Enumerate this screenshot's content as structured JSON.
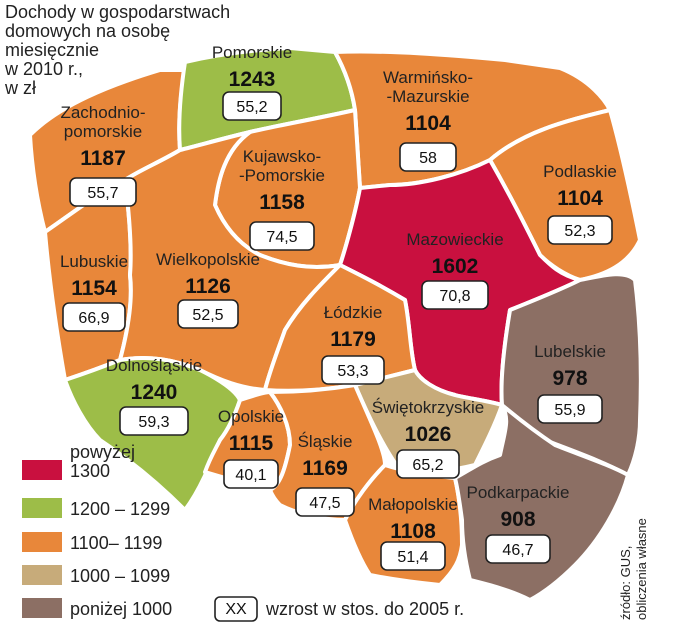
{
  "title_lines": [
    "Dochody w gospodarstwach",
    "domowych na osobę",
    "miesięcznie",
    "w 2010 r.,",
    "w zł"
  ],
  "colors": {
    "above_1300": "#c9103f",
    "r1200_1299": "#9dbd48",
    "r1100_1199": "#e8873a",
    "r1000_1099": "#c7ab7a",
    "below_1000": "#8c6f64",
    "border": "#ffffff"
  },
  "regions": [
    {
      "id": "zachodniopomorskie",
      "name_lines": [
        "Zachodnio-",
        "pomorskie"
      ],
      "value": "1187",
      "growth": "55,7",
      "category": "r1100_1199"
    },
    {
      "id": "pomorskie",
      "name_lines": [
        "Pomorskie"
      ],
      "value": "1243",
      "growth": "55,2",
      "category": "r1200_1299"
    },
    {
      "id": "warminsko-mazurskie",
      "name_lines": [
        "Warmińsko-",
        "-Mazurskie"
      ],
      "value": "1104",
      "growth": "58",
      "category": "r1100_1199"
    },
    {
      "id": "kujawsko-pomorskie",
      "name_lines": [
        "Kujawsko-",
        "-Pomorskie"
      ],
      "value": "1158",
      "growth": "74,5",
      "category": "r1100_1199"
    },
    {
      "id": "podlaskie",
      "name_lines": [
        "Podlaskie"
      ],
      "value": "1104",
      "growth": "52,3",
      "category": "r1100_1199"
    },
    {
      "id": "mazowieckie",
      "name_lines": [
        "Mazowieckie"
      ],
      "value": "1602",
      "growth": "70,8",
      "category": "above_1300"
    },
    {
      "id": "lubuskie",
      "name_lines": [
        "Lubuskie"
      ],
      "value": "1154",
      "growth": "66,9",
      "category": "r1100_1199"
    },
    {
      "id": "wielkopolskie",
      "name_lines": [
        "Wielkopolskie"
      ],
      "value": "1126",
      "growth": "52,5",
      "category": "r1100_1199"
    },
    {
      "id": "lodzkie",
      "name_lines": [
        "Łódzkie"
      ],
      "value": "1179",
      "growth": "53,3",
      "category": "r1100_1199"
    },
    {
      "id": "lubelskie",
      "name_lines": [
        "Lubelskie"
      ],
      "value": "978",
      "growth": "55,9",
      "category": "below_1000"
    },
    {
      "id": "dolnoslaskie",
      "name_lines": [
        "Dolnośląskie"
      ],
      "value": "1240",
      "growth": "59,3",
      "category": "r1200_1299"
    },
    {
      "id": "swietokrzyskie",
      "name_lines": [
        "Świętokrzyskie"
      ],
      "value": "1026",
      "growth": "65,2",
      "category": "r1000_1099"
    },
    {
      "id": "opolskie",
      "name_lines": [
        "Opolskie"
      ],
      "value": "1115",
      "growth": "40,1",
      "category": "r1100_1199"
    },
    {
      "id": "slaskie",
      "name_lines": [
        "Śląskie"
      ],
      "value": "1169",
      "growth": "47,5",
      "category": "r1100_1199"
    },
    {
      "id": "malopolskie",
      "name_lines": [
        "Małopolskie"
      ],
      "value": "1108",
      "growth": "51,4",
      "category": "r1100_1199"
    },
    {
      "id": "podkarpackie",
      "name_lines": [
        "Podkarpackie"
      ],
      "value": "908",
      "growth": "46,7",
      "category": "below_1000"
    }
  ],
  "legend": [
    {
      "category": "above_1300",
      "label_lines": [
        "powyżej",
        "1300"
      ]
    },
    {
      "category": "r1200_1299",
      "label_lines": [
        "1200 – 1299"
      ]
    },
    {
      "category": "r1100_1199",
      "label_lines": [
        "1100– 1199"
      ]
    },
    {
      "category": "r1000_1099",
      "label_lines": [
        "1000 – 1099"
      ]
    },
    {
      "category": "below_1000",
      "label_lines": [
        "poniżej 1000"
      ]
    }
  ],
  "growth_legend": {
    "box_text": "XX",
    "label": "wzrost w stos. do 2005 r."
  },
  "source_lines": [
    "źródło: GUS,",
    "obliczenia własne"
  ]
}
